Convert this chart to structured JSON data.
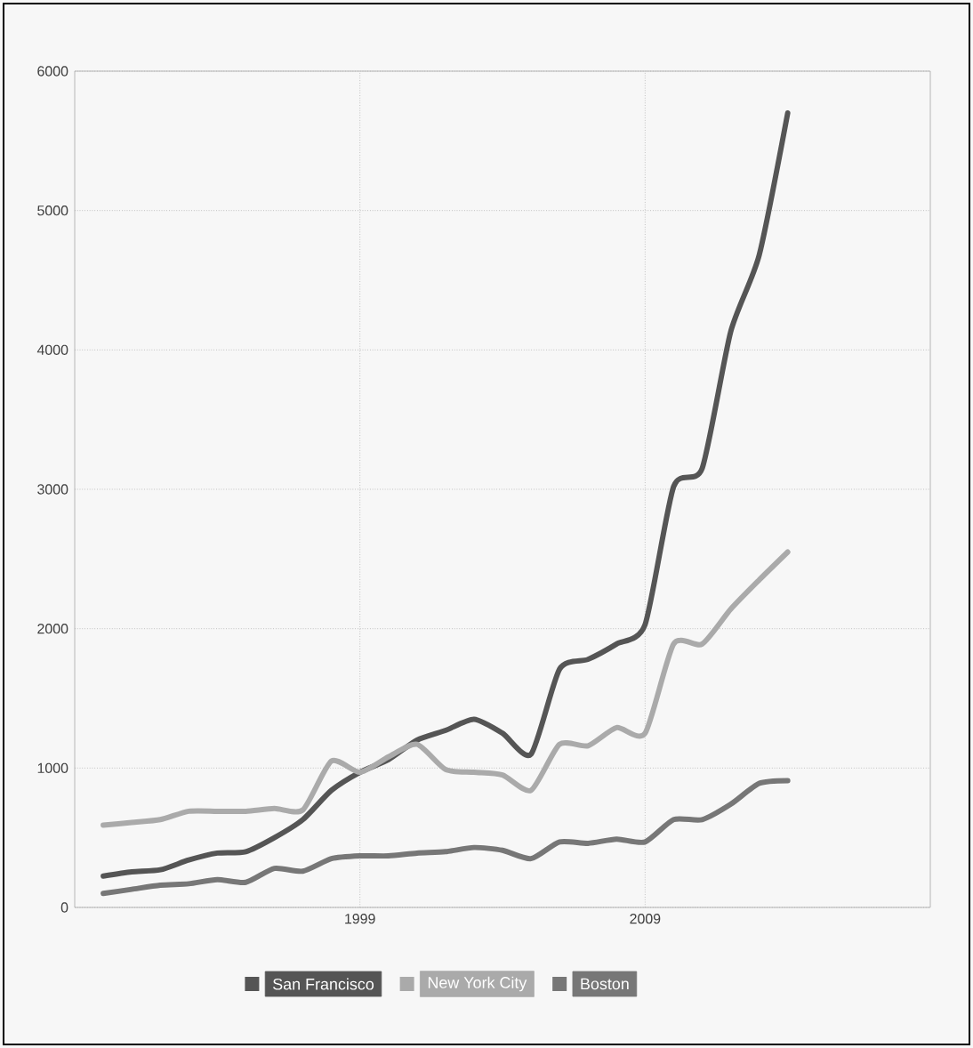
{
  "chart_data": {
    "type": "line",
    "x": [
      1990,
      1991,
      1992,
      1993,
      1994,
      1995,
      1996,
      1997,
      1998,
      1999,
      2000,
      2001,
      2002,
      2003,
      2004,
      2005,
      2006,
      2007,
      2008,
      2009,
      2010,
      2011,
      2012,
      2013,
      2014
    ],
    "series": [
      {
        "name": "San Francisco",
        "color": "#555555",
        "values": [
          225,
          255,
          270,
          340,
          390,
          400,
          500,
          630,
          840,
          970,
          1060,
          1200,
          1270,
          1350,
          1250,
          1100,
          1710,
          1780,
          1890,
          2030,
          3020,
          3150,
          4130,
          4680,
          5700
        ]
      },
      {
        "name": "New York City",
        "color": "#aaaaaa",
        "values": [
          590,
          610,
          630,
          690,
          690,
          690,
          710,
          700,
          1050,
          970,
          1080,
          1170,
          990,
          970,
          950,
          840,
          1170,
          1160,
          1290,
          1250,
          1890,
          1890,
          2140,
          2350,
          2550
        ]
      },
      {
        "name": "Boston",
        "color": "#777777",
        "values": [
          100,
          130,
          160,
          170,
          200,
          180,
          280,
          260,
          350,
          370,
          370,
          390,
          400,
          430,
          410,
          350,
          470,
          460,
          490,
          470,
          630,
          630,
          740,
          890,
          910
        ]
      }
    ],
    "xlim": [
      1989,
      2019
    ],
    "ylim": [
      0,
      6000
    ],
    "xticks": [
      1999,
      2009
    ],
    "yticks": [
      0,
      1000,
      2000,
      3000,
      4000,
      5000,
      6000
    ],
    "grid": true,
    "legend": "bottom"
  }
}
